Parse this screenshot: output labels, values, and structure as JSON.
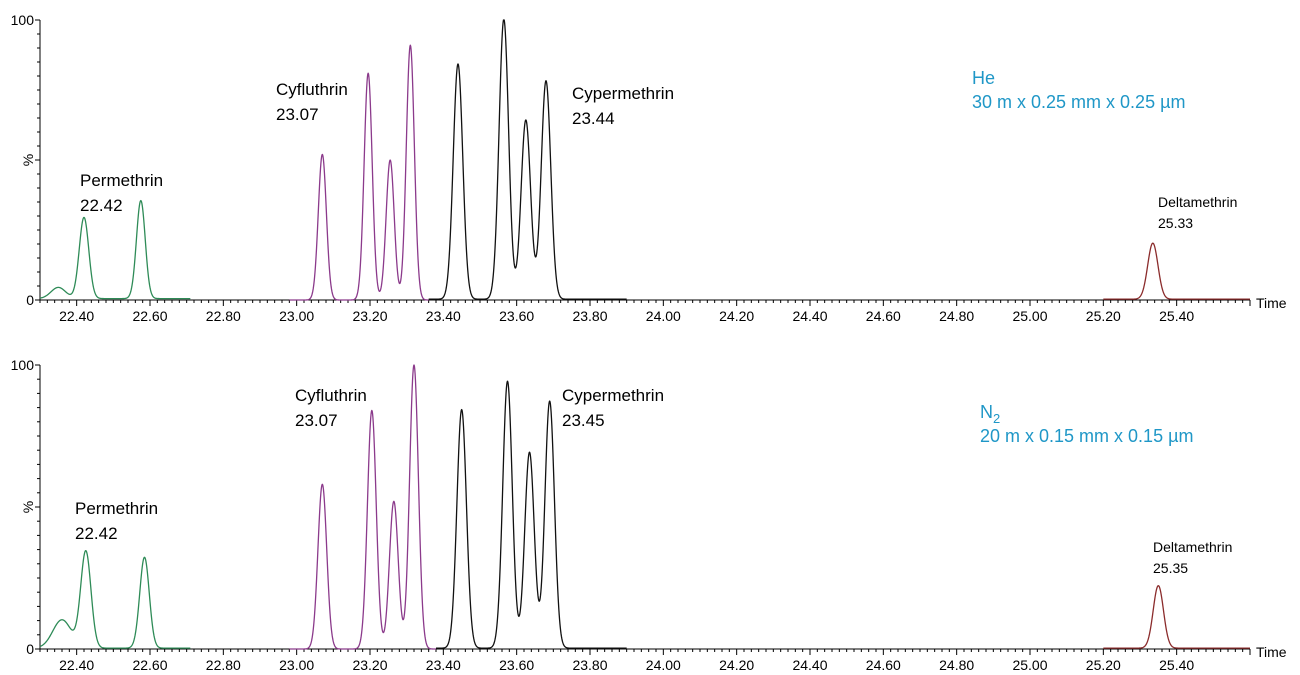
{
  "colors": {
    "permethrin": "#2e8b57",
    "cyfluthrin": "#8b3a8b",
    "cypermethrin": "#111111",
    "deltamethrin": "#8b2c2c",
    "condition_text": "#1f97c7"
  },
  "chart_data": [
    {
      "type": "line",
      "title": "",
      "xlabel": "Time",
      "ylabel": "%",
      "xlim": [
        22.3,
        25.6
      ],
      "ylim": [
        0,
        100
      ],
      "x_ticks": [
        "22.40",
        "22.60",
        "22.80",
        "23.00",
        "23.20",
        "23.40",
        "23.60",
        "23.80",
        "24.00",
        "24.20",
        "24.40",
        "24.60",
        "24.80",
        "25.00",
        "25.20",
        "25.40"
      ],
      "y_ticks": [
        "0",
        "100"
      ],
      "condition": {
        "line1": "He",
        "line1_sub": "",
        "line2": "30 m  x 0.25 mm x 0.25 µm"
      },
      "annotations": [
        {
          "name": "Permethrin",
          "rt": "22.42",
          "size": "large"
        },
        {
          "name": "Cyfluthrin",
          "rt": "23.07",
          "size": "large"
        },
        {
          "name": "Cypermethrin",
          "rt": "23.44",
          "size": "large"
        },
        {
          "name": "Deltamethrin",
          "rt": "25.33",
          "size": "small"
        }
      ],
      "series": [
        {
          "compound": "permethrin",
          "x_range": [
            22.3,
            22.71
          ],
          "baseline": 0.5,
          "peaks": [
            {
              "rt": 22.35,
              "height": 4,
              "width": 0.02
            },
            {
              "rt": 22.42,
              "height": 29,
              "width": 0.013
            },
            {
              "rt": 22.575,
              "height": 35,
              "width": 0.012
            }
          ]
        },
        {
          "compound": "cyfluthrin",
          "x_range": [
            22.98,
            23.36
          ],
          "baseline": 0,
          "peaks": [
            {
              "rt": 23.07,
              "height": 52,
              "width": 0.011
            },
            {
              "rt": 23.195,
              "height": 81,
              "width": 0.011
            },
            {
              "rt": 23.255,
              "height": 50,
              "width": 0.011
            },
            {
              "rt": 23.31,
              "height": 91,
              "width": 0.011
            }
          ]
        },
        {
          "compound": "cypermethrin",
          "x_range": [
            23.36,
            23.9
          ],
          "baseline": 0.3,
          "peaks": [
            {
              "rt": 23.44,
              "height": 84,
              "width": 0.013
            },
            {
              "rt": 23.565,
              "height": 100,
              "width": 0.013
            },
            {
              "rt": 23.625,
              "height": 64,
              "width": 0.013
            },
            {
              "rt": 23.68,
              "height": 78,
              "width": 0.013
            }
          ]
        },
        {
          "compound": "deltamethrin",
          "x_range": [
            25.2,
            25.6
          ],
          "baseline": 0.3,
          "peaks": [
            {
              "rt": 25.335,
              "height": 20,
              "width": 0.014
            }
          ]
        }
      ]
    },
    {
      "type": "line",
      "title": "",
      "xlabel": "Time",
      "ylabel": "%",
      "xlim": [
        22.3,
        25.6
      ],
      "ylim": [
        0,
        100
      ],
      "x_ticks": [
        "22.40",
        "22.60",
        "22.80",
        "23.00",
        "23.20",
        "23.40",
        "23.60",
        "23.80",
        "24.00",
        "24.20",
        "24.40",
        "24.60",
        "24.80",
        "25.00",
        "25.20",
        "25.40"
      ],
      "y_ticks": [
        "0",
        "100"
      ],
      "condition": {
        "line1": "N",
        "line1_sub": "2",
        "line2": "20 m x 0.15 mm x 0.15 µm"
      },
      "annotations": [
        {
          "name": "Permethrin",
          "rt": "22.42",
          "size": "large"
        },
        {
          "name": "Cyfluthrin",
          "rt": "23.07",
          "size": "large"
        },
        {
          "name": "Cypermethrin",
          "rt": "23.45",
          "size": "large"
        },
        {
          "name": "Deltamethrin",
          "rt": "25.35",
          "size": "small"
        }
      ],
      "series": [
        {
          "compound": "permethrin",
          "x_range": [
            22.3,
            22.71
          ],
          "baseline": 0.3,
          "peaks": [
            {
              "rt": 22.36,
              "height": 10,
              "width": 0.025
            },
            {
              "rt": 22.425,
              "height": 34,
              "width": 0.014
            },
            {
              "rt": 22.585,
              "height": 32,
              "width": 0.013
            }
          ]
        },
        {
          "compound": "cyfluthrin",
          "x_range": [
            22.98,
            23.38
          ],
          "baseline": 0,
          "peaks": [
            {
              "rt": 23.07,
              "height": 58,
              "width": 0.012
            },
            {
              "rt": 23.205,
              "height": 84,
              "width": 0.012
            },
            {
              "rt": 23.265,
              "height": 52,
              "width": 0.012
            },
            {
              "rt": 23.32,
              "height": 100,
              "width": 0.012
            }
          ]
        },
        {
          "compound": "cypermethrin",
          "x_range": [
            23.38,
            23.9
          ],
          "baseline": 0.3,
          "peaks": [
            {
              "rt": 23.45,
              "height": 84,
              "width": 0.013
            },
            {
              "rt": 23.575,
              "height": 94,
              "width": 0.013
            },
            {
              "rt": 23.635,
              "height": 69,
              "width": 0.013
            },
            {
              "rt": 23.69,
              "height": 87,
              "width": 0.013
            }
          ]
        },
        {
          "compound": "deltamethrin",
          "x_range": [
            25.2,
            25.6
          ],
          "baseline": 0.3,
          "peaks": [
            {
              "rt": 25.35,
              "height": 22,
              "width": 0.014
            }
          ]
        }
      ]
    }
  ]
}
